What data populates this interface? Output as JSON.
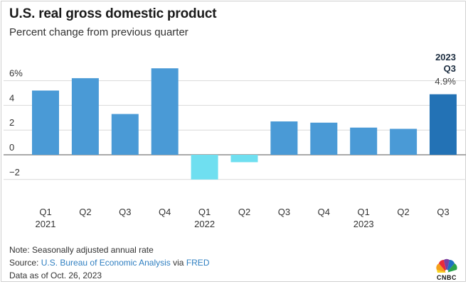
{
  "header": {
    "title": "U.S. real gross domestic product",
    "subtitle": "Percent change from previous quarter"
  },
  "chart_data": {
    "type": "bar",
    "title": "U.S. real gross domestic product",
    "subtitle": "Percent change from previous quarter",
    "categories": [
      "Q1 2021",
      "Q2 2021",
      "Q3 2021",
      "Q4 2021",
      "Q1 2022",
      "Q2 2022",
      "Q3 2022",
      "Q4 2022",
      "Q1 2023",
      "Q2 2023",
      "Q3 2023"
    ],
    "quarter_labels": [
      "Q1",
      "Q2",
      "Q3",
      "Q4",
      "Q1",
      "Q2",
      "Q3",
      "Q4",
      "Q1",
      "Q2",
      "Q3"
    ],
    "year_labels": [
      {
        "index": 0,
        "label": "2021"
      },
      {
        "index": 4,
        "label": "2022"
      },
      {
        "index": 8,
        "label": "2023"
      }
    ],
    "values": [
      5.2,
      6.2,
      3.3,
      7.0,
      -2.0,
      -0.6,
      2.7,
      2.6,
      2.2,
      2.1,
      4.9
    ],
    "ylim": [
      -3,
      8
    ],
    "yticks": [
      {
        "value": 6,
        "label": "6%"
      },
      {
        "value": 4,
        "label": "4"
      },
      {
        "value": 2,
        "label": "2"
      },
      {
        "value": 0,
        "label": "0"
      },
      {
        "value": -2,
        "label": "−2"
      }
    ],
    "xlabel": "",
    "ylabel": "",
    "grid": true,
    "legend": "none",
    "colors": {
      "positive": "#4a9ad6",
      "negative": "#6fdff0",
      "latest": "#2372b5",
      "grid": "#d9d9d9"
    },
    "annotation": {
      "index": 10,
      "year": "2023",
      "quarter": "Q3",
      "value_label": "4.9%"
    }
  },
  "footer": {
    "note": "Note: Seasonally adjusted annual rate",
    "source_prefix": "Source: ",
    "source_agency": "U.S. Bureau of Economic Analysis",
    "source_via": " via ",
    "source_fred": "FRED",
    "as_of": "Data as of Oct. 26, 2023"
  },
  "brand": {
    "logo_icon": "peacock-icon",
    "logo_text": "CNBC"
  }
}
